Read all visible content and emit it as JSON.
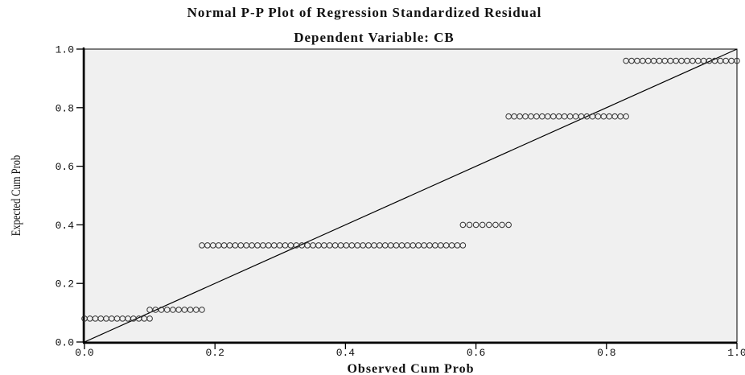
{
  "chart_data": {
    "type": "scatter",
    "title": "Normal P-P Plot of Regression Standardized Residual",
    "subtitle": "Dependent Variable: CB",
    "xlabel": "Observed Cum Prob",
    "ylabel": "Expected Cum Prob",
    "xlim": [
      0,
      1
    ],
    "ylim": [
      0,
      1
    ],
    "xticks": [
      "0.0",
      "0.2",
      "0.4",
      "0.6",
      "0.8",
      "1.0"
    ],
    "yticks": [
      "0.0",
      "0.2",
      "0.4",
      "0.6",
      "0.8",
      "1.0"
    ],
    "grid": false,
    "reference_line": {
      "from": [
        0,
        0
      ],
      "to": [
        1,
        1
      ]
    },
    "plot_background": "#f0f0f0",
    "marker_style": "hollow circle",
    "point_groups": [
      {
        "y": 0.08,
        "x_start": 0.0,
        "x_end": 0.1,
        "count": 13
      },
      {
        "y": 0.11,
        "x_start": 0.1,
        "x_end": 0.18,
        "count": 10
      },
      {
        "y": 0.33,
        "x_start": 0.18,
        "x_end": 0.58,
        "count": 48
      },
      {
        "y": 0.4,
        "x_start": 0.58,
        "x_end": 0.65,
        "count": 8
      },
      {
        "y": 0.77,
        "x_start": 0.65,
        "x_end": 0.83,
        "count": 22
      },
      {
        "y": 0.96,
        "x_start": 0.83,
        "x_end": 1.0,
        "count": 21
      }
    ]
  }
}
